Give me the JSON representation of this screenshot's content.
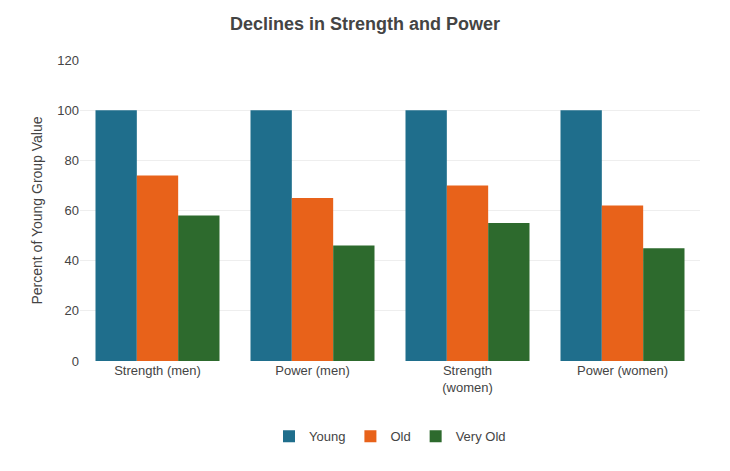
{
  "chart_data": {
    "type": "bar",
    "title": "Declines in Strength and Power",
    "ylabel": "Percent of Young Group Value",
    "categories": [
      "Strength (men)",
      "Power (men)",
      "Strength\n(women)",
      "Power (women)"
    ],
    "series": [
      {
        "name": "Young",
        "color": "#1f6e8c",
        "values": [
          100,
          100,
          100,
          100
        ]
      },
      {
        "name": "Old",
        "color": "#e8621a",
        "values": [
          74,
          65,
          70,
          62
        ]
      },
      {
        "name": "Very Old",
        "color": "#2d6a2d",
        "values": [
          58,
          46,
          55,
          45
        ]
      }
    ],
    "ylim": [
      0,
      120
    ],
    "yticks": [
      0,
      20,
      40,
      60,
      80,
      100,
      120
    ],
    "grid": true,
    "legend": "bottom"
  }
}
